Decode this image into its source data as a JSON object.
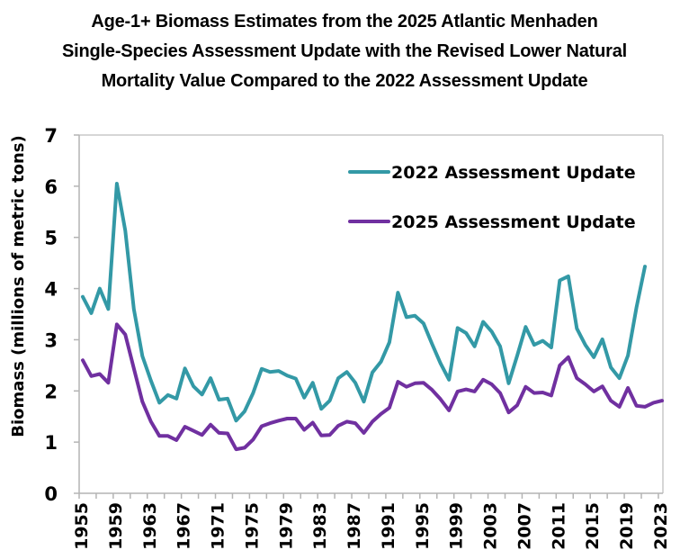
{
  "chart_data": {
    "type": "line",
    "title": "Age-1+ Biomass Estimates from the 2025 Atlantic Menhaden Single-Species Assessment Update with the Revised Lower Natural Mortality Value Compared to the 2022 Assessment Update",
    "title_lines": [
      "Age-1+ Biomass Estimates from the 2025 Atlantic Menhaden",
      "Single-Species Assessment Update with the Revised Lower Natural",
      "Mortality Value Compared to the 2022 Assessment Update"
    ],
    "xlabel": "",
    "ylabel": "Biomass (millions of metric tons)",
    "xlim": [
      1955,
      2023
    ],
    "ylim": [
      0,
      7
    ],
    "y_ticks": [
      0,
      1,
      2,
      3,
      4,
      5,
      6,
      7
    ],
    "x_tick_labels": [
      "1955",
      "1959",
      "1963",
      "1967",
      "1971",
      "1975",
      "1979",
      "1983",
      "1987",
      "1991",
      "1995",
      "1999",
      "2003",
      "2007",
      "2011",
      "2015",
      "2019",
      "2023"
    ],
    "grid": false,
    "legend_position": "top-right",
    "series": [
      {
        "name": "2022 Assessment Update",
        "color": "#3399A6",
        "start_year": 1955,
        "values": [
          3.84,
          3.52,
          4.0,
          3.6,
          6.05,
          5.13,
          3.6,
          2.68,
          2.2,
          1.77,
          1.92,
          1.85,
          2.44,
          2.09,
          1.93,
          2.25,
          1.83,
          1.85,
          1.42,
          1.6,
          1.96,
          2.43,
          2.37,
          2.39,
          2.3,
          2.24,
          1.87,
          2.16,
          1.65,
          1.81,
          2.25,
          2.37,
          2.16,
          1.79,
          2.36,
          2.57,
          2.95,
          3.92,
          3.44,
          3.47,
          3.32,
          2.92,
          2.54,
          2.22,
          3.23,
          3.13,
          2.87,
          3.35,
          3.16,
          2.87,
          2.15,
          2.69,
          3.25,
          2.9,
          2.98,
          2.85,
          4.16,
          4.24,
          3.22,
          2.9,
          2.66,
          3.01,
          2.46,
          2.25,
          2.69,
          3.63,
          4.43
        ]
      },
      {
        "name": "2025 Assessment Update",
        "color": "#7030A0",
        "start_year": 1955,
        "values": [
          2.6,
          2.29,
          2.33,
          2.16,
          3.3,
          3.1,
          2.44,
          1.79,
          1.4,
          1.12,
          1.12,
          1.04,
          1.3,
          1.22,
          1.14,
          1.34,
          1.18,
          1.17,
          0.86,
          0.89,
          1.05,
          1.31,
          1.37,
          1.42,
          1.46,
          1.46,
          1.24,
          1.38,
          1.13,
          1.14,
          1.32,
          1.4,
          1.37,
          1.18,
          1.4,
          1.55,
          1.67,
          2.18,
          2.08,
          2.15,
          2.16,
          2.02,
          1.84,
          1.62,
          1.99,
          2.03,
          1.99,
          2.22,
          2.13,
          1.96,
          1.58,
          1.72,
          2.08,
          1.96,
          1.97,
          1.91,
          2.5,
          2.66,
          2.25,
          2.13,
          1.99,
          2.09,
          1.81,
          1.69,
          2.06,
          1.71,
          1.69,
          1.77,
          1.81
        ]
      }
    ]
  }
}
